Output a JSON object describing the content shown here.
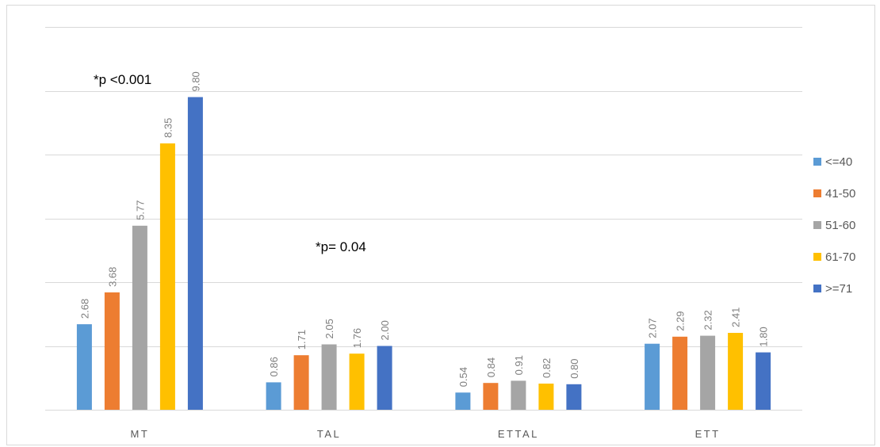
{
  "chart_data": {
    "type": "bar",
    "categories": [
      "MT",
      "TAL",
      "ETTAL",
      "ETT"
    ],
    "series": [
      {
        "name": "<=40",
        "color": "#5B9BD5",
        "values": [
          2.68,
          0.86,
          0.54,
          2.07
        ],
        "labels": [
          "2.68",
          "0.86",
          "0.54",
          "2.07"
        ]
      },
      {
        "name": "41-50",
        "color": "#ED7D31",
        "values": [
          3.68,
          1.71,
          0.84,
          2.29
        ],
        "labels": [
          "3.68",
          "1.71",
          "0.84",
          "2.29"
        ]
      },
      {
        "name": "51-60",
        "color": "#A5A5A5",
        "values": [
          5.77,
          2.05,
          0.91,
          2.32
        ],
        "labels": [
          "5.77",
          "2.05",
          "0.91",
          "2.32"
        ]
      },
      {
        "name": "61-70",
        "color": "#FFC000",
        "values": [
          8.35,
          1.76,
          0.82,
          2.41
        ],
        "labels": [
          "8.35",
          "1.76",
          "0.82",
          "2.41"
        ]
      },
      {
        "name": ">=71",
        "color": "#4472C4",
        "values": [
          9.8,
          2.0,
          0.8,
          1.8
        ],
        "labels": [
          "9.80",
          "2.00",
          "0.80",
          "1.80"
        ]
      }
    ],
    "annotations": [
      {
        "text": "*p <0.001",
        "category": "MT"
      },
      {
        "text": "*p= 0.04",
        "category": "TAL"
      }
    ],
    "title": "",
    "xlabel": "",
    "ylabel": "",
    "ylim": [
      0,
      12
    ],
    "grid": true,
    "legend": "right"
  }
}
